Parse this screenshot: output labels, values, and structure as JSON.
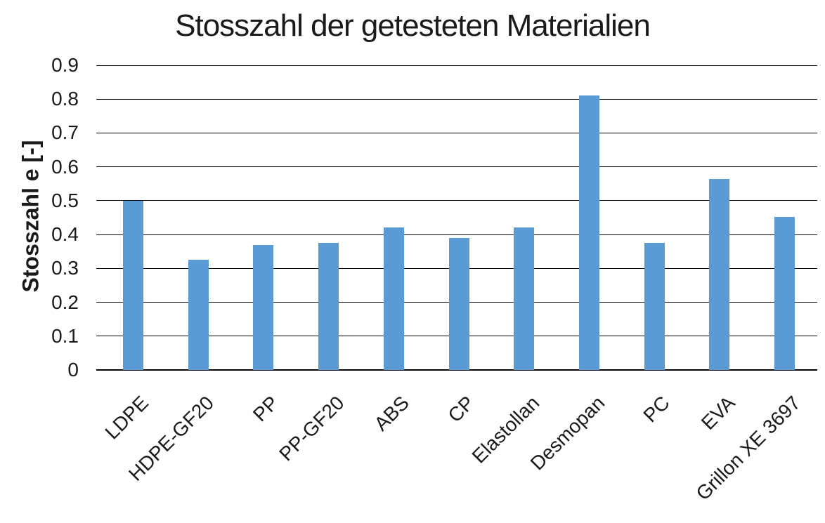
{
  "chart_data": {
    "type": "bar",
    "title": "Stosszahl der getesteten Materialien",
    "categories": [
      "LDPE",
      "HDPE-GF20",
      "PP",
      "PP-GF20",
      "ABS",
      "CP",
      "Elastollan",
      "Desmopan",
      "PC",
      "EVA",
      "Grillon XE 3697"
    ],
    "values": [
      0.5,
      0.325,
      0.37,
      0.375,
      0.42,
      0.39,
      0.422,
      0.81,
      0.375,
      0.565,
      0.453
    ],
    "xlabel": "",
    "ylabel": "Stosszahl e [-]",
    "ylim": [
      0,
      0.9
    ],
    "yticks": [
      "0",
      "0.1",
      "0.2",
      "0.3",
      "0.4",
      "0.5",
      "0.6",
      "0.7",
      "0.8",
      "0.9"
    ],
    "grid": "horizontal",
    "legend_position": "none",
    "x_label_rotation_deg": 45,
    "bar_color": "#5B9BD5",
    "gridline_color": "#000000",
    "text_color": "#1a1a1a"
  }
}
